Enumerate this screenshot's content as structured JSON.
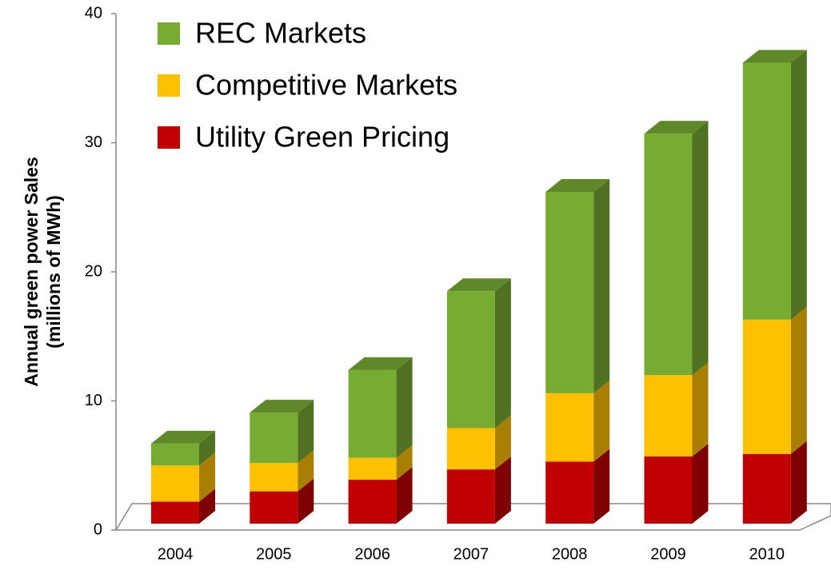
{
  "chart_data": {
    "type": "bar3d_stacked",
    "ylabel": [
      "Annual green power Sales",
      "(millions of MWh)"
    ],
    "categories": [
      "2004",
      "2005",
      "2006",
      "2007",
      "2008",
      "2009",
      "2010"
    ],
    "series": [
      {
        "name": "Utility Green Pricing",
        "color": "#c00000",
        "values": [
          1.7,
          2.5,
          3.4,
          4.2,
          4.8,
          5.2,
          5.4
        ]
      },
      {
        "name": "Competitive Markets",
        "color": "#ffc000",
        "values": [
          2.8,
          2.2,
          1.7,
          3.2,
          5.3,
          6.3,
          10.4
        ]
      },
      {
        "name": "REC Markets",
        "color": "#77ab32",
        "values": [
          1.7,
          3.9,
          6.8,
          10.6,
          15.6,
          18.7,
          19.9
        ]
      }
    ],
    "ylim": [
      0,
      40
    ],
    "yticks": [
      0,
      10,
      20,
      30,
      40
    ]
  }
}
